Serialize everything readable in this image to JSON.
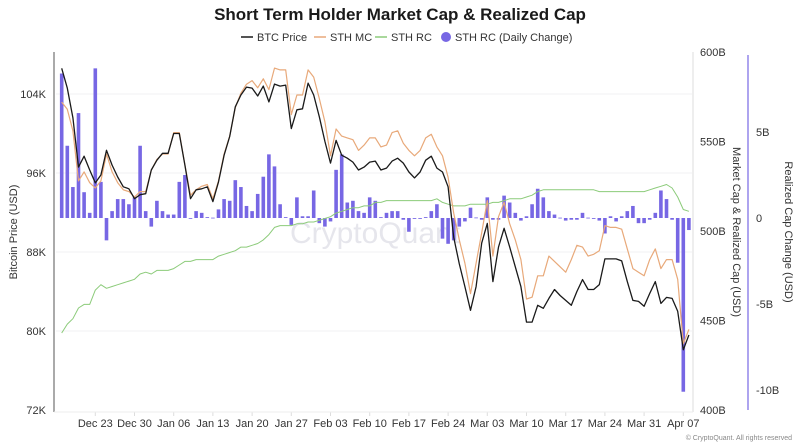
{
  "chart_data": {
    "type": "line",
    "title": "Short Term Holder Market Cap & Realized Cap",
    "legend": {
      "placement": "top-center",
      "items": [
        "BTC Price",
        "STH MC",
        "STH RC",
        "STH RC (Daily Change)"
      ]
    },
    "colors": {
      "btc_price": "#1a1a1a",
      "sth_mc": "#e8a97a",
      "sth_rc": "#8ccb7a",
      "sth_rc_change": "#7767e4"
    },
    "x": {
      "unit": "day index (daily, first day = Dec 17)",
      "count": 113,
      "ticks": [
        {
          "label": "Dec 23",
          "index": 6
        },
        {
          "label": "Dec 30",
          "index": 13
        },
        {
          "label": "Jan 06",
          "index": 20
        },
        {
          "label": "Jan 13",
          "index": 27
        },
        {
          "label": "Jan 20",
          "index": 34
        },
        {
          "label": "Jan 27",
          "index": 41
        },
        {
          "label": "Feb 03",
          "index": 48
        },
        {
          "label": "Feb 10",
          "index": 55
        },
        {
          "label": "Feb 17",
          "index": 62
        },
        {
          "label": "Feb 24",
          "index": 69
        },
        {
          "label": "Mar 03",
          "index": 76
        },
        {
          "label": "Mar 10",
          "index": 83
        },
        {
          "label": "Mar 17",
          "index": 90
        },
        {
          "label": "Mar 24",
          "index": 97
        },
        {
          "label": "Mar 31",
          "index": 104
        },
        {
          "label": "Apr 07",
          "index": 111
        }
      ]
    },
    "y_left": {
      "label": "Bitcoin Price (USD)",
      "range": [
        72,
        108
      ],
      "unit": "K",
      "ticks": [
        "104K",
        "96K",
        "88K",
        "80K",
        "72K"
      ],
      "tick_values": [
        104,
        96,
        88,
        80,
        72
      ]
    },
    "y_right": {
      "label": "Market Cap & Realized Cap (USD)",
      "range": [
        400,
        600
      ],
      "unit": "B",
      "ticks": [
        "600B",
        "550B",
        "500B",
        "450B",
        "400B"
      ],
      "tick_values": [
        600,
        550,
        500,
        450,
        400
      ]
    },
    "y_right2": {
      "label": "Realized Cap Change (USD)",
      "range": [
        -11,
        10.8
      ],
      "unit": "B",
      "ticks": [
        "5B",
        "0",
        "-5B",
        "-10B"
      ],
      "tick_values": [
        5,
        0,
        -5,
        -10
      ]
    },
    "series": [
      {
        "name": "BTC Price",
        "axis": "left",
        "kind": "line",
        "values": [
          106.6,
          104.6,
          101.6,
          96.6,
          97.7,
          96.3,
          95.0,
          95.8,
          98.3,
          96.8,
          95.6,
          94.6,
          94.4,
          93.4,
          93.8,
          93.9,
          96.3,
          97.3,
          98.0,
          98.0,
          100.0,
          100.0,
          96.8,
          93.4,
          94.3,
          94.4,
          94.6,
          93.1,
          95.1,
          97.8,
          99.7,
          102.7,
          103.9,
          104.7,
          104.6,
          103.8,
          104.8,
          103.2,
          105.0,
          104.8,
          104.9,
          100.5,
          102.4,
          102.5,
          105.1,
          103.9,
          101.7,
          99.2,
          97.0,
          99.3,
          97.8,
          97.5,
          97.1,
          96.3,
          96.6,
          97.1,
          97.2,
          96.3,
          96.5,
          97.2,
          97.5,
          97.0,
          96.1,
          95.5,
          96.1,
          97.3,
          97.7,
          96.5,
          96.1,
          94.6,
          89.5,
          86.8,
          84.5,
          82.1,
          84.5,
          88.9,
          90.9,
          85.0,
          88.5,
          90.4,
          88.5,
          86.5,
          84.5,
          80.9,
          80.9,
          82.6,
          82.3,
          83.3,
          84.2,
          83.6,
          83.1,
          82.6,
          84.0,
          85.2,
          84.2,
          84.2,
          84.7,
          87.3,
          87.3,
          87.3,
          87.1,
          85.0,
          83.1,
          83.0,
          82.5,
          83.8,
          85.0,
          82.8,
          83.4,
          83.3,
          82.0,
          78.1,
          79.6
        ]
      },
      {
        "name": "STH MC",
        "axis": "right",
        "kind": "line",
        "values": [
          572,
          568,
          556,
          528,
          533,
          527,
          524,
          528,
          543,
          533,
          527,
          523,
          522,
          519,
          522,
          522,
          534,
          540,
          543,
          543,
          555,
          555,
          537,
          520,
          523,
          525,
          526,
          518,
          528,
          543,
          553,
          569,
          577,
          582,
          584,
          580,
          585,
          579,
          591,
          590,
          590,
          565,
          576,
          576,
          590,
          586,
          574,
          561,
          542,
          557,
          553,
          552,
          551,
          545,
          548,
          552,
          552,
          547,
          548,
          555,
          556,
          549,
          545,
          542,
          545,
          552,
          554,
          547,
          542,
          530,
          510,
          495,
          482,
          465,
          482,
          499,
          517,
          486,
          508,
          516,
          504,
          495,
          484,
          462,
          463,
          475,
          475,
          486,
          483,
          480,
          477,
          484,
          492,
          491,
          486,
          487,
          489,
          503,
          502,
          502,
          501,
          490,
          479,
          477,
          475,
          484,
          490,
          479,
          484,
          484,
          473,
          437,
          445
        ]
      },
      {
        "name": "STH RC",
        "axis": "right",
        "kind": "line",
        "values": [
          443,
          448,
          451,
          457,
          459,
          459,
          467,
          470,
          468,
          469,
          470,
          471,
          472,
          473,
          476,
          477,
          476,
          478,
          478,
          478,
          479,
          481,
          483,
          483,
          484,
          484,
          484,
          484,
          486,
          487,
          488,
          489,
          491,
          491,
          492,
          493,
          495,
          498,
          502,
          503,
          503,
          503,
          504,
          504,
          505,
          505,
          506,
          507,
          508,
          510,
          511,
          512,
          513,
          513,
          514,
          514,
          516,
          516,
          517,
          517,
          517,
          517,
          517,
          517,
          517,
          517,
          517,
          518,
          516,
          515,
          514,
          514,
          514,
          515,
          515,
          515,
          515,
          516,
          516,
          517,
          518,
          518,
          518,
          519,
          520,
          522,
          523,
          523,
          523,
          523,
          523,
          523,
          523,
          523,
          523,
          523,
          522,
          522,
          522,
          522,
          522,
          522,
          522,
          522,
          522,
          523,
          524,
          525,
          526,
          524,
          519,
          512,
          511
        ]
      },
      {
        "name": "STH RC (Daily Change)",
        "axis": "right2",
        "kind": "bar",
        "values": [
          8.4,
          4.2,
          1.8,
          6.1,
          1.5,
          0.3,
          8.7,
          2.1,
          -1.3,
          0.4,
          1.1,
          1.1,
          0.8,
          1.2,
          4.2,
          0.4,
          -0.5,
          1.0,
          0.4,
          0.2,
          0.2,
          2.1,
          2.5,
          0.0,
          0.4,
          0.3,
          0.05,
          0.02,
          0.5,
          1.1,
          1.0,
          2.2,
          1.8,
          0.7,
          0.4,
          1.4,
          2.4,
          3.7,
          3.0,
          0.8,
          0.05,
          -0.4,
          1.2,
          0.1,
          0.1,
          1.6,
          -0.3,
          -0.5,
          -0.2,
          2.8,
          3.7,
          0.9,
          1.0,
          0.4,
          0.3,
          1.2,
          1.0,
          0.05,
          0.3,
          0.4,
          0.4,
          -0.1,
          -0.8,
          -0.05,
          -0.05,
          0.05,
          0.4,
          0.8,
          -1.2,
          -1.5,
          -1.3,
          -0.5,
          -0.2,
          0.6,
          0.03,
          -0.1,
          1.2,
          -0.1,
          -0.1,
          1.3,
          0.9,
          0.3,
          -0.15,
          0.1,
          0.8,
          1.7,
          1.2,
          0.4,
          0.2,
          0.02,
          -0.15,
          -0.1,
          -0.1,
          0.3,
          0.02,
          -0.05,
          -0.15,
          -0.9,
          0.1,
          -0.2,
          0.1,
          0.4,
          0.7,
          -0.3,
          -0.3,
          -0.1,
          0.3,
          1.6,
          1.1,
          -0.1,
          -2.6,
          -10.1,
          -0.7
        ]
      }
    ],
    "grid": true,
    "watermark": "CryptoQuant",
    "footer": "© CryptoQuant. All rights reserved"
  }
}
